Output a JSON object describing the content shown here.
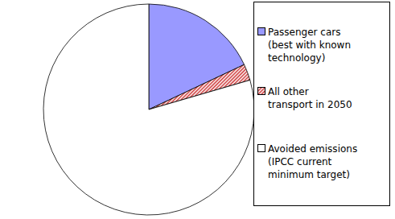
{
  "chart_data": {
    "type": "pie",
    "categories": [
      "Passenger cars\n(best with known\ntechnology)",
      "All other\ntransport in 2050",
      "Avoided emissions\n(IPCC current\nminimum target)"
    ],
    "values": [
      18,
      2.5,
      79.5
    ],
    "colors": [
      "#9999ff",
      "#cc3333",
      "#ffffff"
    ],
    "legend": "right"
  }
}
